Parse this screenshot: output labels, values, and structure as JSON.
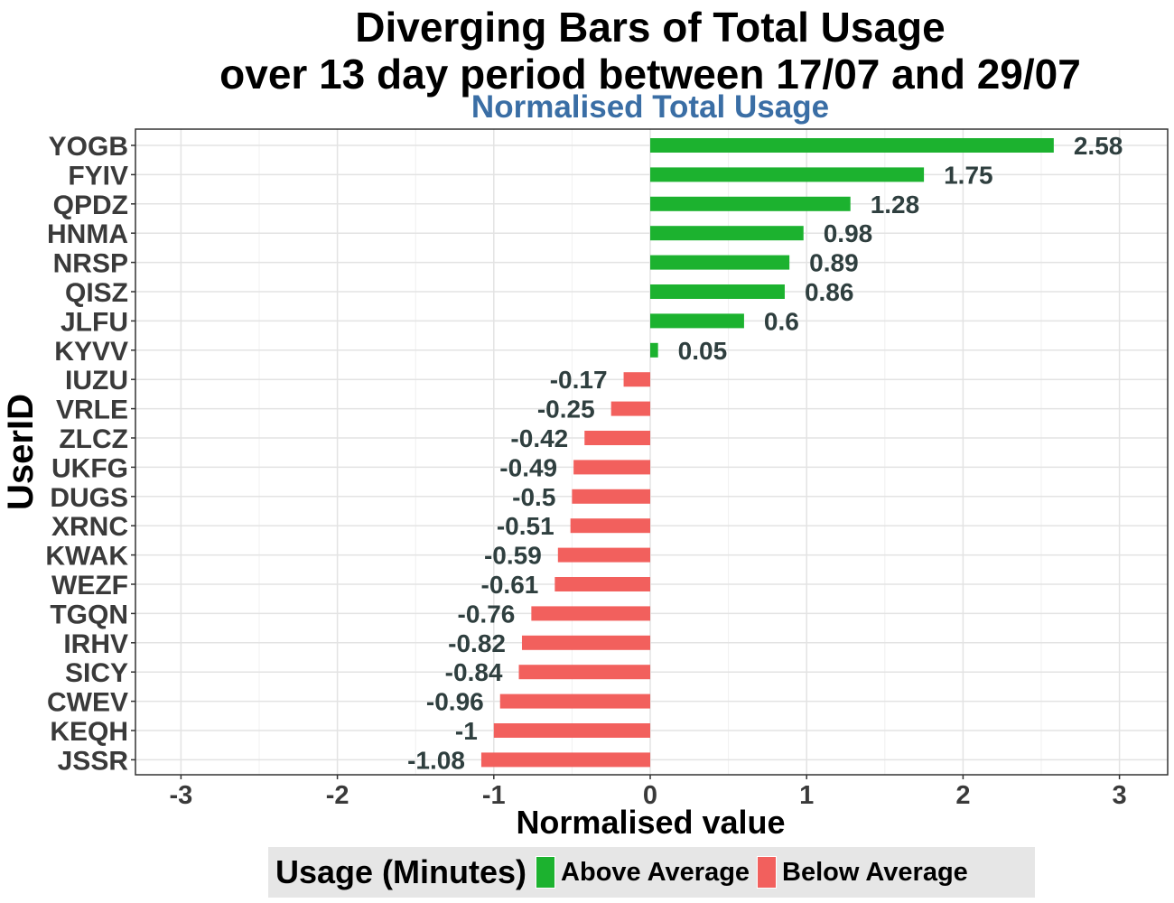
{
  "chart_data": {
    "type": "bar",
    "orientation": "horizontal",
    "title_lines": [
      "Diverging Bars of Total Usage",
      "over 13 day period between 17/07 and 29/07"
    ],
    "subtitle": "Normalised Total Usage",
    "xlabel": "Normalised value",
    "ylabel": "UserID",
    "xlim": [
      -3,
      3
    ],
    "x_ticks": [
      "-3",
      "-2",
      "-1",
      "0",
      "1",
      "2",
      "3"
    ],
    "grid": true,
    "categories": [
      "YOGB",
      "FYIV",
      "QPDZ",
      "HNMA",
      "NRSP",
      "QISZ",
      "JLFU",
      "KYVV",
      "IUZU",
      "VRLE",
      "ZLCZ",
      "UKFG",
      "DUGS",
      "XRNC",
      "KWAK",
      "WEZF",
      "TGQN",
      "IRHV",
      "SICY",
      "CWEV",
      "KEQH",
      "JSSR"
    ],
    "values": [
      2.58,
      1.75,
      1.28,
      0.98,
      0.89,
      0.86,
      0.6,
      0.05,
      -0.17,
      -0.25,
      -0.42,
      -0.49,
      -0.5,
      -0.51,
      -0.59,
      -0.61,
      -0.76,
      -0.82,
      -0.84,
      -0.96,
      -1,
      -1.08
    ],
    "value_labels": [
      "2.58",
      "1.75",
      "1.28",
      "0.98",
      "0.89",
      "0.86",
      "0.6",
      "0.05",
      "-0.17",
      "-0.25",
      "-0.42",
      "-0.49",
      "-0.5",
      "-0.51",
      "-0.59",
      "-0.61",
      "-0.76",
      "-0.82",
      "-0.84",
      "-0.96",
      "-1",
      "-1.08"
    ],
    "legend": {
      "title": "Usage (Minutes)",
      "position": "bottom",
      "items": [
        {
          "label": "Above Average",
          "color": "#1cb22f"
        },
        {
          "label": "Below Average",
          "color": "#f2605d"
        }
      ]
    },
    "colors": {
      "above": "#1cb22f",
      "below": "#f2605d",
      "subtitle": "#3a6ea5",
      "value_label": "#2f3f3f",
      "axis_text": "#3a3a3a"
    }
  }
}
